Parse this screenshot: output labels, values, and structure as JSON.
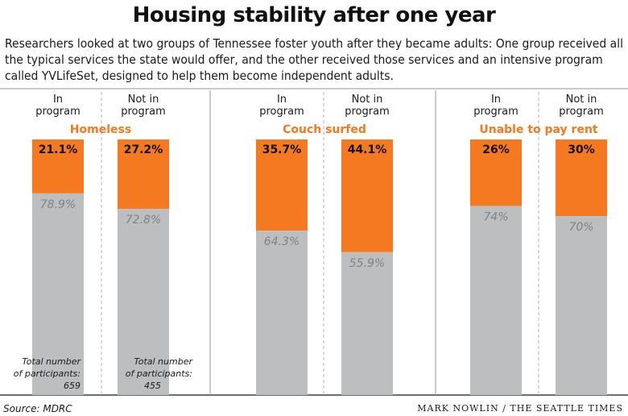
{
  "title": "Housing stability after one year",
  "subtitle": "Researchers looked at two groups of Tennessee foster youth after they became adults: One group received all the typical services the state would offer, and the other received those services and an intensive program called YVLifeSet, designed to help them become independent adults.",
  "group_labels": [
    "In program",
    "Not in program"
  ],
  "participants": [
    {
      "label": "Total number of participants:",
      "value": "659"
    },
    {
      "label": "Total number of participants:",
      "value": "455"
    }
  ],
  "source": "Source: MDRC",
  "credit": "MARK NOWLIN / THE SEATTLE TIMES",
  "colors": {
    "orange": "#f47920",
    "gray": "#bcbec0",
    "category": "#f47920",
    "gray_text": "#808285"
  },
  "chart_data": [
    {
      "type": "bar",
      "stacked": true,
      "title": "Homeless",
      "categories": [
        "In program",
        "Not in program"
      ],
      "series": [
        {
          "values": [
            21.1,
            27.2
          ],
          "labels": [
            "21.1%",
            "27.2%"
          ]
        },
        {
          "values": [
            78.9,
            72.8
          ],
          "labels": [
            "78.9%",
            "72.8%"
          ]
        }
      ],
      "ylim": [
        0,
        100
      ]
    },
    {
      "type": "bar",
      "stacked": true,
      "title": "Couch surfed",
      "categories": [
        "In program",
        "Not in program"
      ],
      "series": [
        {
          "values": [
            35.7,
            44.1
          ],
          "labels": [
            "35.7%",
            "44.1%"
          ]
        },
        {
          "values": [
            64.3,
            55.9
          ],
          "labels": [
            "64.3%",
            "55.9%"
          ]
        }
      ],
      "ylim": [
        0,
        100
      ]
    },
    {
      "type": "bar",
      "stacked": true,
      "title": "Unable to pay rent",
      "categories": [
        "In program",
        "Not in program"
      ],
      "series": [
        {
          "values": [
            26,
            30
          ],
          "labels": [
            "26%",
            "30%"
          ]
        },
        {
          "values": [
            74,
            70
          ],
          "labels": [
            "74%",
            "70%"
          ]
        }
      ],
      "ylim": [
        0,
        100
      ]
    }
  ]
}
